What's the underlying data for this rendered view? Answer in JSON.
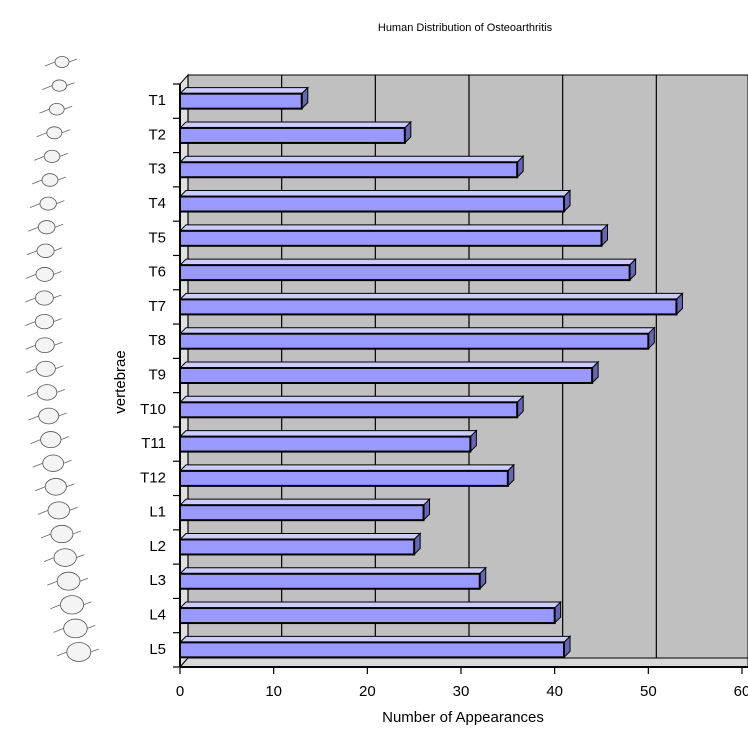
{
  "chart_data": {
    "type": "bar3d",
    "orientation": "horizontal",
    "title": "Human Distribution of Osteoarthritis",
    "x_label": "Number of Appearances",
    "y_label": "vertebrae",
    "categories": [
      "T1",
      "T2",
      "T3",
      "T4",
      "T5",
      "T6",
      "T7",
      "T8",
      "T9",
      "T10",
      "T11",
      "T12",
      "L1",
      "L2",
      "L3",
      "L4",
      "L5"
    ],
    "values": [
      13,
      24,
      36,
      41,
      45,
      48,
      53,
      50,
      44,
      36,
      31,
      35,
      26,
      25,
      32,
      40,
      41
    ],
    "color": "#9999ff",
    "xlim": [
      0,
      60
    ],
    "xticks": [
      0,
      10,
      20,
      30,
      40,
      50,
      60
    ],
    "grid": true
  }
}
